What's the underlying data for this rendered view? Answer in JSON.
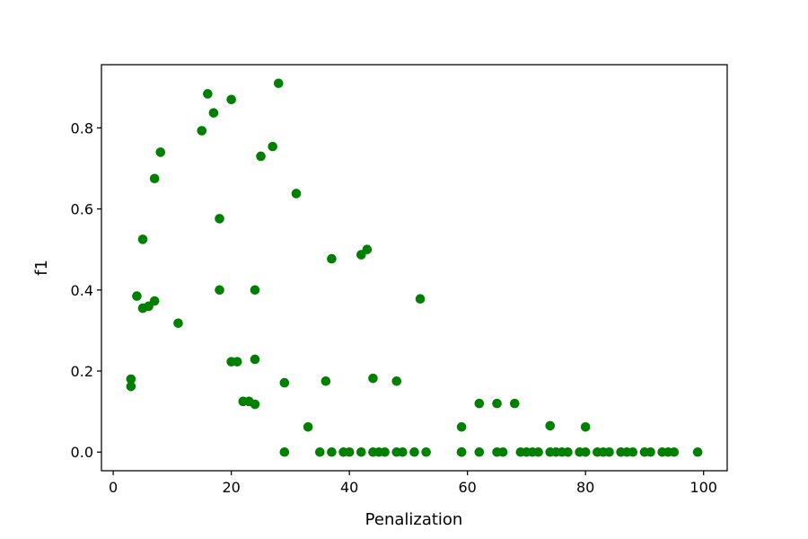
{
  "chart_data": {
    "type": "scatter",
    "title": "",
    "xlabel": "Penalization",
    "ylabel": "f1",
    "xlim": [
      -2,
      104
    ],
    "ylim": [
      -0.046,
      0.956
    ],
    "xticks": [
      0,
      20,
      40,
      60,
      80,
      100
    ],
    "xtick_labels": [
      "0",
      "20",
      "40",
      "60",
      "80",
      "100"
    ],
    "yticks": [
      0.0,
      0.2,
      0.4,
      0.6,
      0.8
    ],
    "ytick_labels": [
      "0.0",
      "0.2",
      "0.4",
      "0.6",
      "0.8"
    ],
    "grid": false,
    "legend": "none",
    "marker_color": "#008000",
    "series": [
      {
        "x": [
          3,
          3,
          4,
          5,
          5,
          6,
          7,
          7,
          8,
          11,
          15,
          16,
          17,
          18,
          18,
          20,
          20,
          21,
          22,
          23,
          24,
          24,
          24,
          25,
          27,
          28,
          29,
          29,
          31,
          33,
          35,
          36,
          37,
          37,
          39,
          40,
          42,
          42,
          43,
          44,
          44,
          45,
          46,
          48,
          48,
          49,
          51,
          52,
          53,
          59,
          59,
          59,
          62,
          62,
          65,
          65,
          66,
          68,
          69,
          70,
          71,
          72,
          74,
          74,
          75,
          76,
          77,
          79,
          80,
          80,
          82,
          83,
          84,
          86,
          87,
          88,
          90,
          91,
          93,
          94,
          95,
          99
        ],
        "y": [
          0.18,
          0.162,
          0.385,
          0.525,
          0.355,
          0.36,
          0.675,
          0.373,
          0.74,
          0.318,
          0.793,
          0.884,
          0.837,
          0.576,
          0.4,
          0.87,
          0.223,
          0.223,
          0.125,
          0.125,
          0.4,
          0.229,
          0.118,
          0.73,
          0.754,
          0.91,
          0.171,
          0.0,
          0.638,
          0.062,
          0.0,
          0.175,
          0.477,
          0.0,
          0.0,
          0.0,
          0.487,
          0.0,
          0.5,
          0.182,
          0.0,
          0.0,
          0.0,
          0.175,
          0.0,
          0.0,
          0.0,
          0.378,
          0.0,
          0.062,
          0.0,
          0.0,
          0.12,
          0.0,
          0.12,
          0.0,
          0.0,
          0.12,
          0.0,
          0.0,
          0.0,
          0.0,
          0.065,
          0.0,
          0.0,
          0.0,
          0.0,
          0.0,
          0.062,
          0.0,
          0.0,
          0.0,
          0.0,
          0.0,
          0.0,
          0.0,
          0.0,
          0.0,
          0.0,
          0.0,
          0.0,
          0.0
        ]
      }
    ]
  }
}
